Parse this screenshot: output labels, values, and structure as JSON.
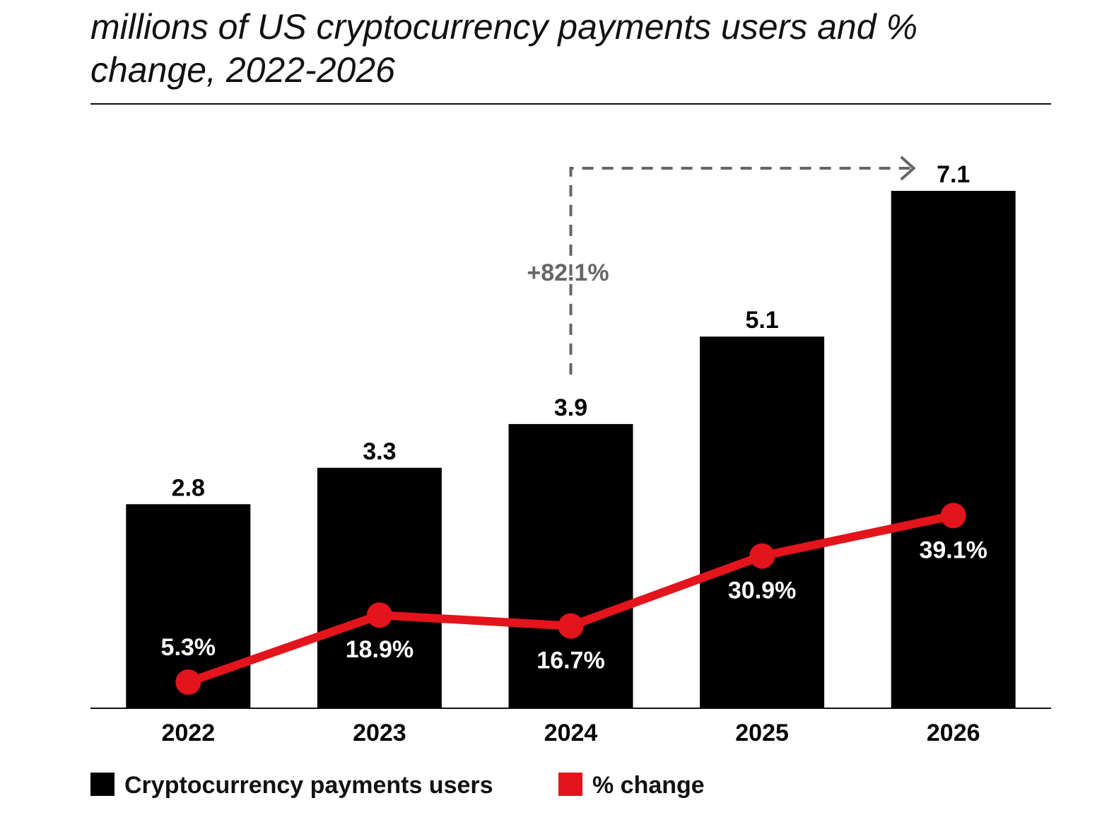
{
  "chart_data": {
    "type": "bar_line",
    "title": "millions of US cryptocurrency payments users and % change, 2022-2026",
    "categories": [
      "2022",
      "2023",
      "2024",
      "2025",
      "2026"
    ],
    "series": [
      {
        "name": "Cryptocurrency payments users",
        "color": "#000000",
        "type": "bar",
        "values": [
          2.8,
          3.3,
          3.9,
          5.1,
          7.1
        ]
      },
      {
        "name": "% change",
        "color": "#e3141c",
        "type": "line",
        "axis": "y2",
        "values": [
          5.3,
          18.9,
          16.7,
          30.9,
          39.1
        ],
        "value_labels": [
          "5.3%",
          "18.9%",
          "16.7%",
          "30.9%",
          "39.1%"
        ]
      }
    ],
    "annotation": "+82.1%",
    "ylim": [
      0,
      7.1
    ],
    "y2lim": [
      0,
      105
    ],
    "legend": "bottom-left"
  }
}
